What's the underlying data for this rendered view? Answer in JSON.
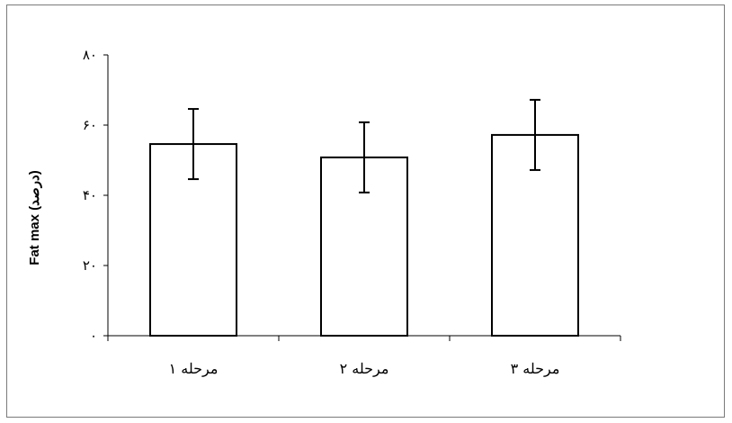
{
  "chart_data": {
    "type": "bar",
    "title": "",
    "xlabel": "",
    "ylabel": "Fat max (درصد)",
    "categories": [
      "مرحله ۱",
      "مرحله ۲",
      "مرحله ۳"
    ],
    "series": [
      {
        "values": [
          54.6,
          50.8,
          57.2
        ],
        "error": [
          10.0,
          10.0,
          10.0
        ]
      }
    ],
    "ylim": [
      0,
      80
    ],
    "yticks": [
      0,
      20,
      40,
      60,
      80
    ],
    "ytick_labels": [
      "۰",
      "۲۰",
      "۴۰",
      "۶۰",
      "۸۰"
    ],
    "grid": false,
    "legend": "none",
    "colors": {
      "bar_fill": "#ffffff",
      "bar_stroke": "#000000",
      "axis": "#000000"
    }
  }
}
